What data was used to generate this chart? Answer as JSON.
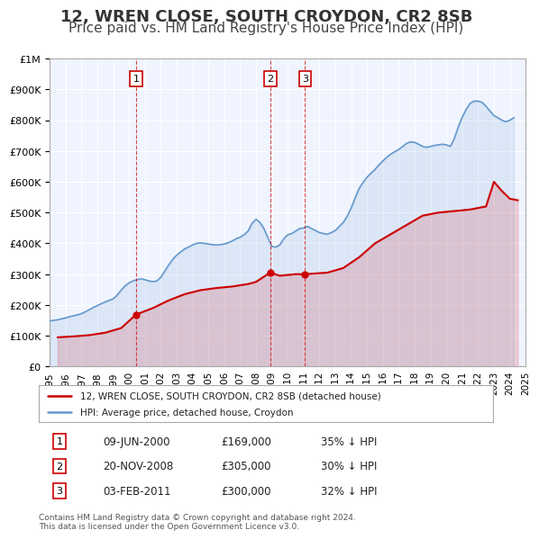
{
  "title": "12, WREN CLOSE, SOUTH CROYDON, CR2 8SB",
  "subtitle": "Price paid vs. HM Land Registry's House Price Index (HPI)",
  "title_fontsize": 13,
  "subtitle_fontsize": 11,
  "background_color": "#ffffff",
  "plot_bg_color": "#f0f4ff",
  "grid_color": "#ffffff",
  "red_line_color": "#cc0000",
  "blue_line_color": "#6699cc",
  "legend_label_red": "12, WREN CLOSE, SOUTH CROYDON, CR2 8SB (detached house)",
  "legend_label_blue": "HPI: Average price, detached house, Croydon",
  "transactions": [
    {
      "label": "1",
      "date_str": "09-JUN-2000",
      "price": 169000,
      "pct": "35%",
      "x": 2000.44
    },
    {
      "label": "2",
      "date_str": "20-NOV-2008",
      "price": 305000,
      "pct": "30%",
      "x": 2008.89
    },
    {
      "label": "3",
      "date_str": "03-FEB-2011",
      "price": 300000,
      "pct": "32%",
      "x": 2011.09
    }
  ],
  "footnote": "Contains HM Land Registry data © Crown copyright and database right 2024.\nThis data is licensed under the Open Government Licence v3.0.",
  "hpi_data": {
    "x": [
      1995.0,
      1995.25,
      1995.5,
      1995.75,
      1996.0,
      1996.25,
      1996.5,
      1996.75,
      1997.0,
      1997.25,
      1997.5,
      1997.75,
      1998.0,
      1998.25,
      1998.5,
      1998.75,
      1999.0,
      1999.25,
      1999.5,
      1999.75,
      2000.0,
      2000.25,
      2000.5,
      2000.75,
      2001.0,
      2001.25,
      2001.5,
      2001.75,
      2002.0,
      2002.25,
      2002.5,
      2002.75,
      2003.0,
      2003.25,
      2003.5,
      2003.75,
      2004.0,
      2004.25,
      2004.5,
      2004.75,
      2005.0,
      2005.25,
      2005.5,
      2005.75,
      2006.0,
      2006.25,
      2006.5,
      2006.75,
      2007.0,
      2007.25,
      2007.5,
      2007.75,
      2008.0,
      2008.25,
      2008.5,
      2008.75,
      2009.0,
      2009.25,
      2009.5,
      2009.75,
      2010.0,
      2010.25,
      2010.5,
      2010.75,
      2011.0,
      2011.25,
      2011.5,
      2011.75,
      2012.0,
      2012.25,
      2012.5,
      2012.75,
      2013.0,
      2013.25,
      2013.5,
      2013.75,
      2014.0,
      2014.25,
      2014.5,
      2014.75,
      2015.0,
      2015.25,
      2015.5,
      2015.75,
      2016.0,
      2016.25,
      2016.5,
      2016.75,
      2017.0,
      2017.25,
      2017.5,
      2017.75,
      2018.0,
      2018.25,
      2018.5,
      2018.75,
      2019.0,
      2019.25,
      2019.5,
      2019.75,
      2020.0,
      2020.25,
      2020.5,
      2020.75,
      2021.0,
      2021.25,
      2021.5,
      2021.75,
      2022.0,
      2022.25,
      2022.5,
      2022.75,
      2023.0,
      2023.25,
      2023.5,
      2023.75,
      2024.0,
      2024.25
    ],
    "y": [
      148000,
      150000,
      152000,
      155000,
      158000,
      162000,
      165000,
      168000,
      172000,
      178000,
      185000,
      192000,
      198000,
      204000,
      210000,
      215000,
      220000,
      232000,
      248000,
      262000,
      272000,
      278000,
      282000,
      285000,
      282000,
      278000,
      276000,
      278000,
      290000,
      310000,
      330000,
      348000,
      362000,
      372000,
      382000,
      388000,
      395000,
      400000,
      402000,
      400000,
      398000,
      396000,
      395000,
      396000,
      398000,
      402000,
      408000,
      415000,
      420000,
      428000,
      440000,
      465000,
      478000,
      468000,
      448000,
      418000,
      390000,
      388000,
      395000,
      415000,
      428000,
      432000,
      440000,
      448000,
      450000,
      455000,
      448000,
      442000,
      435000,
      432000,
      430000,
      435000,
      442000,
      455000,
      468000,
      488000,
      515000,
      548000,
      578000,
      598000,
      615000,
      628000,
      640000,
      655000,
      668000,
      680000,
      690000,
      698000,
      705000,
      715000,
      725000,
      730000,
      728000,
      722000,
      715000,
      712000,
      715000,
      718000,
      720000,
      722000,
      720000,
      715000,
      740000,
      778000,
      810000,
      835000,
      855000,
      862000,
      862000,
      858000,
      845000,
      830000,
      815000,
      808000,
      800000,
      795000,
      800000,
      808000
    ]
  },
  "price_data": {
    "x": [
      1995.5,
      1996.5,
      1997.5,
      1998.5,
      1999.5,
      2000.44,
      2001.5,
      2002.5,
      2003.5,
      2004.5,
      2005.5,
      2006.5,
      2007.5,
      2008.0,
      2008.89,
      2009.5,
      2010.5,
      2011.09,
      2012.5,
      2013.5,
      2014.5,
      2015.5,
      2016.5,
      2017.5,
      2018.5,
      2019.5,
      2020.5,
      2021.5,
      2022.5,
      2023.0,
      2023.5,
      2024.0,
      2024.5
    ],
    "y": [
      95000,
      98000,
      102000,
      110000,
      125000,
      169000,
      190000,
      215000,
      235000,
      248000,
      255000,
      260000,
      268000,
      275000,
      305000,
      295000,
      300000,
      300000,
      305000,
      320000,
      355000,
      400000,
      430000,
      460000,
      490000,
      500000,
      505000,
      510000,
      520000,
      600000,
      570000,
      545000,
      540000
    ]
  },
  "xlim": [
    1995,
    2025
  ],
  "ylim": [
    0,
    1000000
  ],
  "yticks": [
    0,
    100000,
    200000,
    300000,
    400000,
    500000,
    600000,
    700000,
    800000,
    900000,
    1000000
  ]
}
